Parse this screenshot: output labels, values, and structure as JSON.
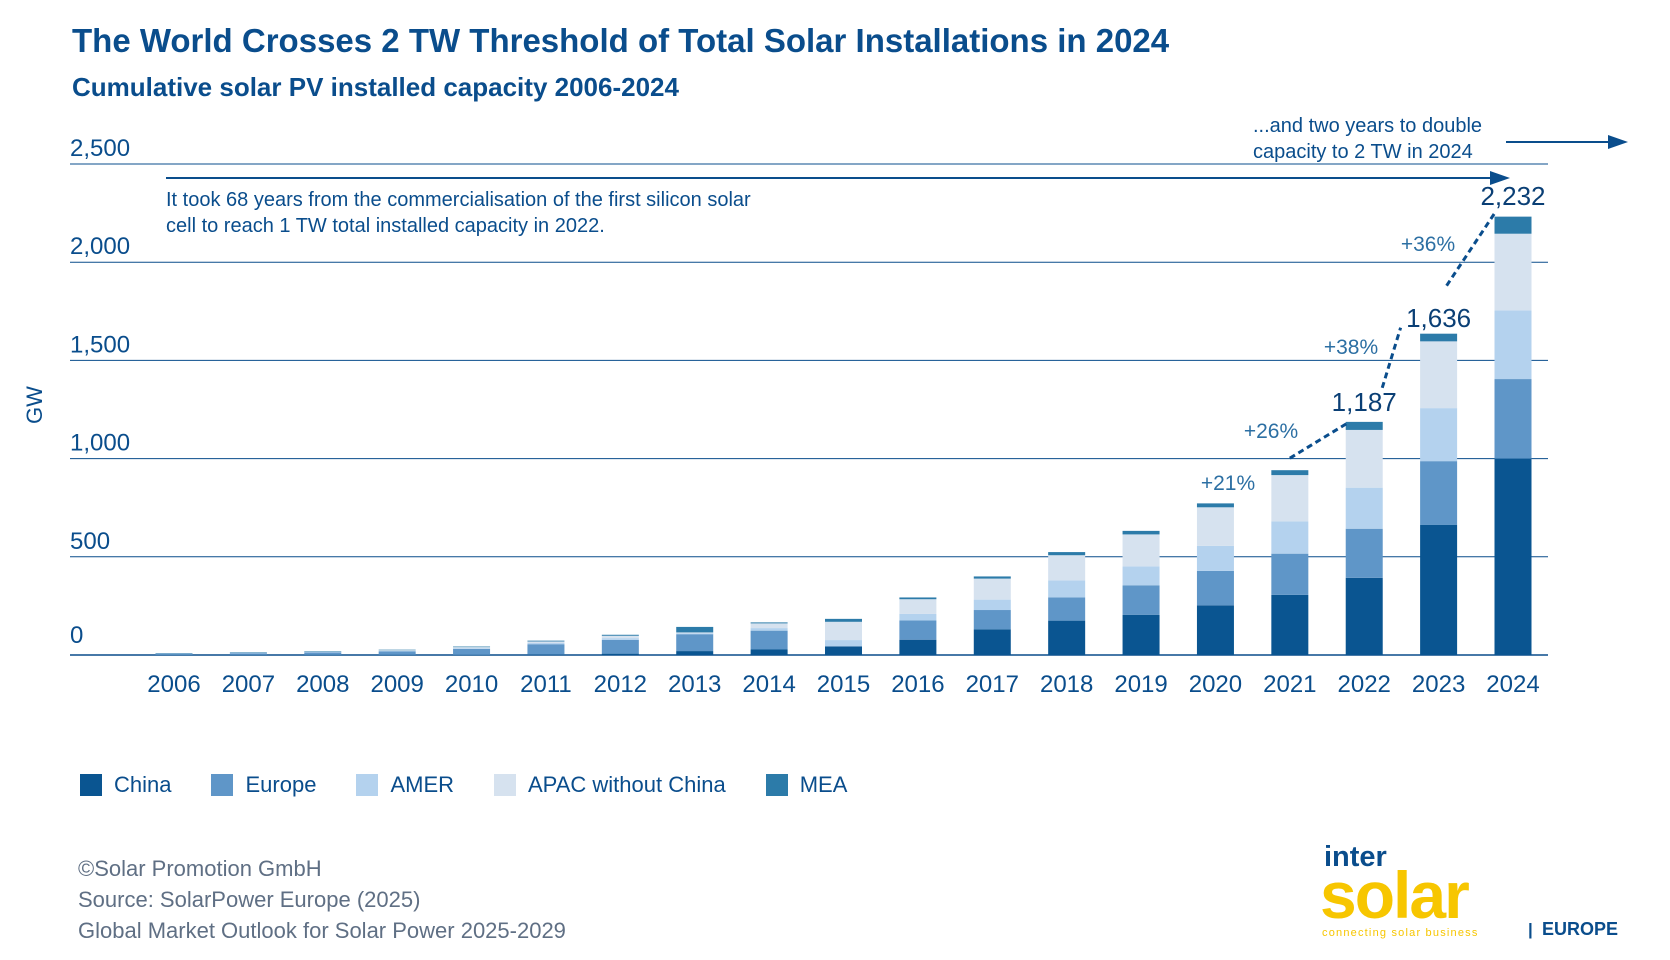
{
  "title": "The World Crosses 2 TW Threshold of Total Solar Installations in 2024",
  "subtitle": "Cumulative solar PV installed capacity 2006-2024",
  "colors": {
    "title": "#0a4d8c",
    "China": "#0a5591",
    "Europe": "#5f96c8",
    "AMER": "#b4d2ee",
    "APAC without China": "#d6e2ef",
    "MEA": "#2c7ba9",
    "brand_yellow": "#f7c600"
  },
  "chart_data": {
    "type": "bar",
    "stacked": true,
    "ylabel": "GW",
    "ylim": [
      0,
      2500
    ],
    "yticks": [
      0,
      500,
      1000,
      1500,
      2000,
      2500
    ],
    "ytick_labels": [
      "0",
      "500",
      "1,000",
      "1,500",
      "2,000",
      "2,500"
    ],
    "grid": true,
    "categories": [
      "2006",
      "2007",
      "2008",
      "2009",
      "2010",
      "2011",
      "2012",
      "2013",
      "2014",
      "2015",
      "2016",
      "2017",
      "2018",
      "2019",
      "2020",
      "2021",
      "2022",
      "2023",
      "2024"
    ],
    "series": [
      {
        "name": "China",
        "values": [
          1,
          1,
          1,
          1,
          1,
          3,
          7,
          20,
          28,
          44,
          78,
          131,
          175,
          205,
          253,
          306,
          393,
          662,
          1000
        ]
      },
      {
        "name": "Europe",
        "values": [
          5,
          8,
          12,
          17,
          30,
          52,
          70,
          86,
          96,
          0,
          98,
          98,
          118,
          150,
          175,
          210,
          250,
          325,
          405
        ]
      },
      {
        "name": "AMER",
        "values": [
          1,
          2,
          2,
          3,
          4,
          6,
          9,
          5,
          13,
          32,
          33,
          53,
          87,
          96,
          128,
          164,
          209,
          270,
          350
        ]
      },
      {
        "name": "APAC without China",
        "values": [
          2,
          2,
          3,
          4,
          5,
          8,
          12,
          4,
          24,
          93,
          75,
          107,
          128,
          163,
          196,
          236,
          294,
          340,
          390
        ]
      },
      {
        "name": "MEA",
        "values": [
          1,
          1,
          1,
          2,
          3,
          4,
          5,
          28,
          5,
          15,
          9,
          11,
          16,
          18,
          20,
          25,
          41,
          39,
          87
        ]
      }
    ],
    "totals": [
      {
        "year": "2021",
        "label": "",
        "value": 941
      },
      {
        "year": "2022",
        "label": "1,187",
        "value": 1187
      },
      {
        "year": "2023",
        "label": "1,636",
        "value": 1636
      },
      {
        "year": "2024",
        "label": "2,232",
        "value": 2232
      }
    ],
    "growth_labels": [
      {
        "year": "2020",
        "label": "+21%"
      },
      {
        "year": "2021",
        "label": "+26%"
      },
      {
        "year": "2022",
        "label": "+38%"
      },
      {
        "year": "2023",
        "label": "+36%"
      }
    ],
    "annotations": {
      "long_arrow_text": [
        "It took 68 years from the commercialisation of the first silicon solar",
        "cell to reach 1 TW total installed capacity in 2022."
      ],
      "short_arrow_text": [
        "...and two years to double",
        "capacity to 2 TW in 2024"
      ]
    },
    "legend_placement": "bottom-left"
  },
  "legend": [
    "China",
    "Europe",
    "AMER",
    "APAC without China",
    "MEA"
  ],
  "source": {
    "line1": "©Solar Promotion GmbH",
    "line2": "Source: SolarPower Europe (2025)",
    "line3": "Global Market Outlook for Solar Power 2025-2029"
  },
  "logo": {
    "top": "inter",
    "main": "solar",
    "tagline": "connecting solar business",
    "sep": "|",
    "region": "EUROPE"
  }
}
